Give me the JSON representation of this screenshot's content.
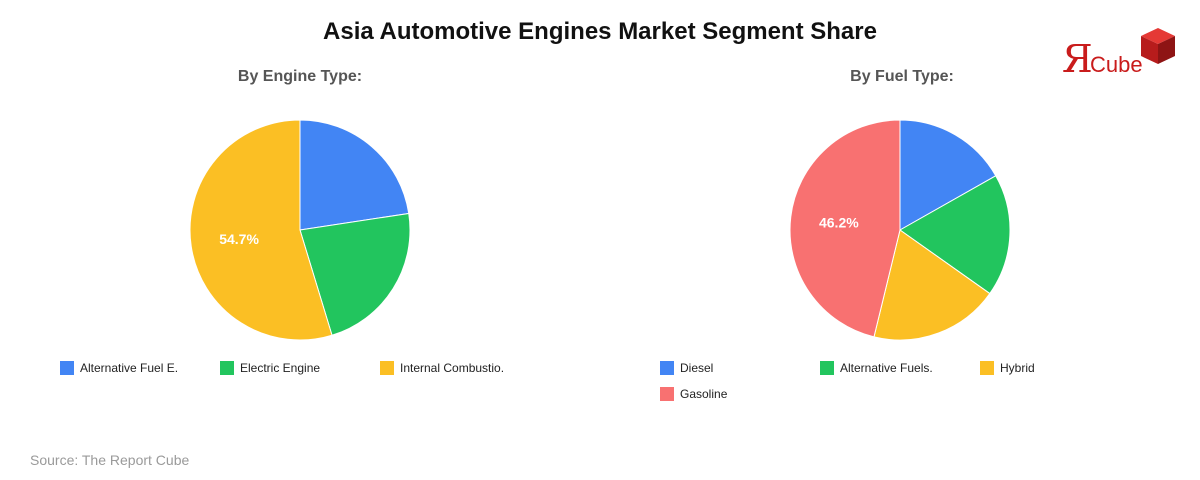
{
  "title": "Asia Automotive Engines Market Segment Share",
  "source": "Source: The Report Cube",
  "logo": {
    "r": "Я",
    "text": "Cube"
  },
  "colors": {
    "blue": "#4285f4",
    "green": "#22c55e",
    "yellow": "#fbbf24",
    "red": "#f87171",
    "title": "#111111",
    "source": "#9a9a9a"
  },
  "chart_data": [
    {
      "type": "pie",
      "title": "By Engine Type:",
      "labels": [
        "Alternative Fuel E.",
        "Electric Engine",
        "Internal Combustio."
      ],
      "values": [
        22.6,
        22.7,
        54.7
      ],
      "colors": [
        "#4285f4",
        "#22c55e",
        "#fbbf24"
      ],
      "shown_labels": [
        "",
        "",
        "54.7%"
      ],
      "legend": "bottom"
    },
    {
      "type": "pie",
      "title": "By Fuel Type:",
      "labels": [
        "Diesel",
        "Alternative Fuels.",
        "Hybrid",
        "Gasoline"
      ],
      "values": [
        16.8,
        18.0,
        19.0,
        46.2
      ],
      "colors": [
        "#4285f4",
        "#22c55e",
        "#fbbf24",
        "#f87171"
      ],
      "shown_labels": [
        "",
        "",
        "",
        "46.2%"
      ],
      "legend": "bottom"
    }
  ]
}
